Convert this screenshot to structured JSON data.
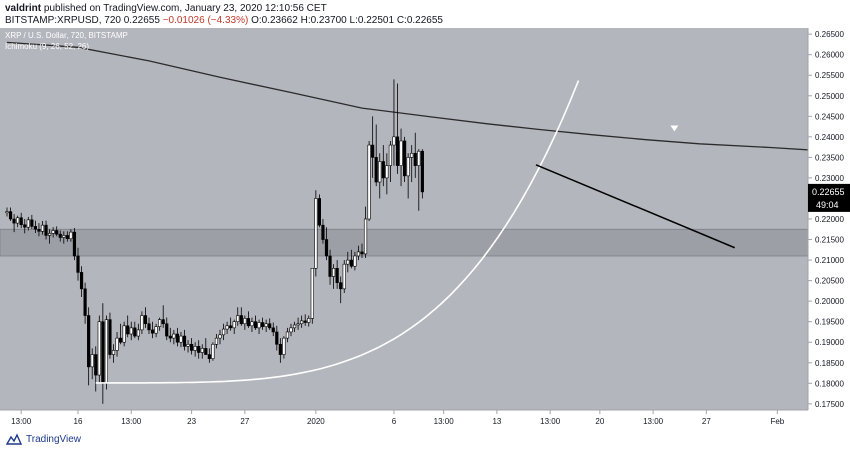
{
  "header": {
    "publisher": "valdrint",
    "published_text": "published on TradingView.com, January 23, 2020 12:10:56 CET",
    "symbol": "BITSTAMP:XRPUSD, 720",
    "open": "O:0.23662",
    "high": "H:0.23700",
    "low": "L:0.22501",
    "close": "C:0.22655",
    "last": "0.22655",
    "change": "−0.01026 (−4.33%)"
  },
  "legend": {
    "series_title": "XRP / U.S. Dollar, 720, BITSTAMP",
    "indicator": "Ichimoku (9, 26, 52, 26)"
  },
  "price_tag": {
    "price": "0.22655",
    "countdown": "49:04"
  },
  "footer": {
    "brand": "TradingView"
  },
  "colors": {
    "plot_bg": "#b3b6bd",
    "support_zone": "#9c9fa6",
    "bull": "#ffffff",
    "bear": "#000000",
    "ma": "#2b2b2b",
    "curve": "#ffffff",
    "trendline": "#000000",
    "price_tag_bg": "#000000"
  },
  "chart_data": {
    "type": "candlestick",
    "title": "XRP / U.S. Dollar, 720, BITSTAMP",
    "interval": "720",
    "ylim": [
      0.1735,
      0.2665
    ],
    "y_ticks": [
      "0.17500",
      "0.18000",
      "0.18500",
      "0.19000",
      "0.19500",
      "0.20000",
      "0.20500",
      "0.21000",
      "0.21500",
      "0.22000",
      "0.22500",
      "0.23000",
      "0.23500",
      "0.24000",
      "0.24500",
      "0.25000",
      "0.25500",
      "0.26000",
      "0.26500"
    ],
    "x_ticks": [
      {
        "label": "13:00",
        "idx": 4
      },
      {
        "label": "16",
        "idx": 20
      },
      {
        "label": "13:00",
        "idx": 35
      },
      {
        "label": "23",
        "idx": 52
      },
      {
        "label": "27",
        "idx": 67
      },
      {
        "label": "2020",
        "idx": 87
      },
      {
        "label": "6",
        "idx": 109
      },
      {
        "label": "13:00",
        "idx": 123
      },
      {
        "label": "13",
        "idx": 138
      },
      {
        "label": "13:00",
        "idx": 153
      },
      {
        "label": "20",
        "idx": 167
      },
      {
        "label": "13:00",
        "idx": 182
      },
      {
        "label": "27",
        "idx": 197
      },
      {
        "label": "Feb",
        "idx": 217
      }
    ],
    "candles": [
      [
        0.2215,
        0.2228,
        0.2206,
        0.2218
      ],
      [
        0.2218,
        0.2228,
        0.2195,
        0.22
      ],
      [
        0.22,
        0.2212,
        0.2168,
        0.219
      ],
      [
        0.219,
        0.2208,
        0.218,
        0.2203
      ],
      [
        0.2203,
        0.2215,
        0.2178,
        0.2186
      ],
      [
        0.2186,
        0.22,
        0.2165,
        0.218
      ],
      [
        0.218,
        0.2205,
        0.2172,
        0.2198
      ],
      [
        0.2198,
        0.221,
        0.2175,
        0.2182
      ],
      [
        0.2182,
        0.2196,
        0.2166,
        0.2175
      ],
      [
        0.2175,
        0.219,
        0.2158,
        0.217
      ],
      [
        0.217,
        0.2195,
        0.2162,
        0.2185
      ],
      [
        0.2185,
        0.2196,
        0.215,
        0.216
      ],
      [
        0.216,
        0.2175,
        0.214,
        0.2165
      ],
      [
        0.2165,
        0.218,
        0.2155,
        0.2172
      ],
      [
        0.2172,
        0.2182,
        0.2158,
        0.2163
      ],
      [
        0.2163,
        0.2172,
        0.2145,
        0.2155
      ],
      [
        0.2155,
        0.217,
        0.214,
        0.216
      ],
      [
        0.216,
        0.217,
        0.2145,
        0.2152
      ],
      [
        0.2152,
        0.2175,
        0.2145,
        0.2168
      ],
      [
        0.2168,
        0.2178,
        0.21,
        0.211
      ],
      [
        0.211,
        0.213,
        0.205,
        0.207
      ],
      [
        0.207,
        0.2085,
        0.201,
        0.203
      ],
      [
        0.203,
        0.2045,
        0.1945,
        0.1965
      ],
      [
        0.1965,
        0.1985,
        0.1795,
        0.184
      ],
      [
        0.184,
        0.1885,
        0.181,
        0.187
      ],
      [
        0.187,
        0.189,
        0.178,
        0.182
      ],
      [
        0.182,
        0.1965,
        0.18,
        0.195
      ],
      [
        0.195,
        0.1995,
        0.175,
        0.18
      ],
      [
        0.18,
        0.1965,
        0.1785,
        0.1955
      ],
      [
        0.1955,
        0.1972,
        0.186,
        0.187
      ],
      [
        0.187,
        0.1895,
        0.185,
        0.188
      ],
      [
        0.188,
        0.1925,
        0.1865,
        0.191
      ],
      [
        0.191,
        0.1945,
        0.1895,
        0.19
      ],
      [
        0.19,
        0.195,
        0.189,
        0.194
      ],
      [
        0.194,
        0.1965,
        0.1912,
        0.192
      ],
      [
        0.192,
        0.195,
        0.1905,
        0.1935
      ],
      [
        0.1935,
        0.195,
        0.191,
        0.1915
      ],
      [
        0.1915,
        0.1945,
        0.1905,
        0.193
      ],
      [
        0.193,
        0.1975,
        0.192,
        0.1965
      ],
      [
        0.1965,
        0.1985,
        0.1935,
        0.1945
      ],
      [
        0.1945,
        0.196,
        0.192,
        0.193
      ],
      [
        0.193,
        0.195,
        0.191,
        0.1922
      ],
      [
        0.1922,
        0.1945,
        0.1912,
        0.1938
      ],
      [
        0.1938,
        0.196,
        0.1928,
        0.1955
      ],
      [
        0.1955,
        0.199,
        0.1935,
        0.1945
      ],
      [
        0.1945,
        0.196,
        0.1905,
        0.1915
      ],
      [
        0.1915,
        0.1935,
        0.19,
        0.191
      ],
      [
        0.191,
        0.193,
        0.1895,
        0.192
      ],
      [
        0.192,
        0.1935,
        0.189,
        0.19
      ],
      [
        0.19,
        0.1925,
        0.1888,
        0.1915
      ],
      [
        0.1915,
        0.193,
        0.188,
        0.189
      ],
      [
        0.189,
        0.1905,
        0.1875,
        0.1895
      ],
      [
        0.1895,
        0.191,
        0.187,
        0.188
      ],
      [
        0.188,
        0.19,
        0.1865,
        0.189
      ],
      [
        0.189,
        0.1905,
        0.186,
        0.1875
      ],
      [
        0.1875,
        0.1895,
        0.186,
        0.1885
      ],
      [
        0.1885,
        0.191,
        0.187,
        0.187
      ],
      [
        0.187,
        0.1885,
        0.185,
        0.186
      ],
      [
        0.186,
        0.19,
        0.1855,
        0.1895
      ],
      [
        0.1895,
        0.192,
        0.1885,
        0.191
      ],
      [
        0.191,
        0.193,
        0.1895,
        0.1918
      ],
      [
        0.1918,
        0.1945,
        0.1905,
        0.1932
      ],
      [
        0.1932,
        0.195,
        0.192,
        0.194
      ],
      [
        0.194,
        0.196,
        0.1928,
        0.1935
      ],
      [
        0.1935,
        0.1955,
        0.192,
        0.195
      ],
      [
        0.195,
        0.1985,
        0.194,
        0.1965
      ],
      [
        0.1965,
        0.1985,
        0.194,
        0.1945
      ],
      [
        0.1945,
        0.1965,
        0.193,
        0.1958
      ],
      [
        0.1958,
        0.1975,
        0.1935,
        0.194
      ],
      [
        0.194,
        0.196,
        0.1925,
        0.195
      ],
      [
        0.195,
        0.1965,
        0.193,
        0.1935
      ],
      [
        0.1935,
        0.1955,
        0.192,
        0.1948
      ],
      [
        0.1948,
        0.196,
        0.193,
        0.1938
      ],
      [
        0.1938,
        0.1955,
        0.1925,
        0.1945
      ],
      [
        0.1945,
        0.1958,
        0.193,
        0.1935
      ],
      [
        0.1935,
        0.1948,
        0.1915,
        0.1925
      ],
      [
        0.1925,
        0.194,
        0.188,
        0.1895
      ],
      [
        0.1895,
        0.191,
        0.185,
        0.187
      ],
      [
        0.187,
        0.1915,
        0.186,
        0.191
      ],
      [
        0.191,
        0.1935,
        0.19,
        0.1925
      ],
      [
        0.1925,
        0.1945,
        0.1915,
        0.1935
      ],
      [
        0.1935,
        0.195,
        0.1925,
        0.1942
      ],
      [
        0.1942,
        0.196,
        0.193,
        0.1945
      ],
      [
        0.1945,
        0.1965,
        0.1935,
        0.1952
      ],
      [
        0.1952,
        0.1968,
        0.194,
        0.1948
      ],
      [
        0.1948,
        0.1965,
        0.1938,
        0.1958
      ],
      [
        0.1958,
        0.208,
        0.1945,
        0.208
      ],
      [
        0.208,
        0.227,
        0.206,
        0.225
      ],
      [
        0.225,
        0.226,
        0.218,
        0.2185
      ],
      [
        0.2185,
        0.22,
        0.214,
        0.215
      ],
      [
        0.215,
        0.218,
        0.21,
        0.211
      ],
      [
        0.211,
        0.2125,
        0.204,
        0.206
      ],
      [
        0.206,
        0.209,
        0.203,
        0.208
      ],
      [
        0.208,
        0.21,
        0.203,
        0.2045
      ],
      [
        0.2045,
        0.206,
        0.1995,
        0.203
      ],
      [
        0.203,
        0.21,
        0.202,
        0.209
      ],
      [
        0.209,
        0.212,
        0.207,
        0.21
      ],
      [
        0.21,
        0.2125,
        0.208,
        0.2085
      ],
      [
        0.2085,
        0.212,
        0.2075,
        0.211
      ],
      [
        0.211,
        0.2135,
        0.21,
        0.212
      ],
      [
        0.212,
        0.214,
        0.2105,
        0.2115
      ],
      [
        0.2115,
        0.223,
        0.2105,
        0.22
      ],
      [
        0.22,
        0.239,
        0.2195,
        0.238
      ],
      [
        0.238,
        0.245,
        0.23,
        0.235
      ],
      [
        0.235,
        0.243,
        0.228,
        0.229
      ],
      [
        0.229,
        0.236,
        0.225,
        0.234
      ],
      [
        0.234,
        0.238,
        0.228,
        0.23
      ],
      [
        0.23,
        0.236,
        0.226,
        0.233
      ],
      [
        0.233,
        0.239,
        0.229,
        0.238
      ],
      [
        0.238,
        0.254,
        0.233,
        0.24
      ],
      [
        0.24,
        0.253,
        0.231,
        0.233
      ],
      [
        0.233,
        0.242,
        0.228,
        0.239
      ],
      [
        0.239,
        0.24,
        0.229,
        0.2305
      ],
      [
        0.2305,
        0.236,
        0.225,
        0.235
      ],
      [
        0.235,
        0.238,
        0.229,
        0.236
      ],
      [
        0.236,
        0.241,
        0.23,
        0.233
      ],
      [
        0.233,
        0.237,
        0.222,
        0.2365
      ],
      [
        0.2365,
        0.237,
        0.225,
        0.2266
      ]
    ],
    "sma": {
      "name": "",
      "points": [
        [
          0,
          0.263
        ],
        [
          20,
          0.2618
        ],
        [
          40,
          0.2585
        ],
        [
          60,
          0.2545
        ],
        [
          80,
          0.2508
        ],
        [
          100,
          0.247
        ],
        [
          120,
          0.2448
        ],
        [
          135,
          0.2432
        ],
        [
          150,
          0.2418
        ],
        [
          165,
          0.2405
        ],
        [
          180,
          0.2393
        ],
        [
          195,
          0.2383
        ],
        [
          215,
          0.2374
        ],
        [
          230,
          0.2366
        ],
        [
          245,
          0.2362
        ],
        [
          252,
          0.2358
        ]
      ]
    },
    "support_zone": [
      0.211,
      0.2175
    ],
    "parabolic_curve": {
      "x0": 25,
      "x1": 161,
      "y_start": 0.1801,
      "y_end": 0.2537
    },
    "trendline": {
      "start": [
        149,
        0.2332
      ],
      "end": [
        205,
        0.213
      ]
    },
    "marker": {
      "idx": 188,
      "price": 0.2418,
      "shape": "down-triangle"
    }
  }
}
